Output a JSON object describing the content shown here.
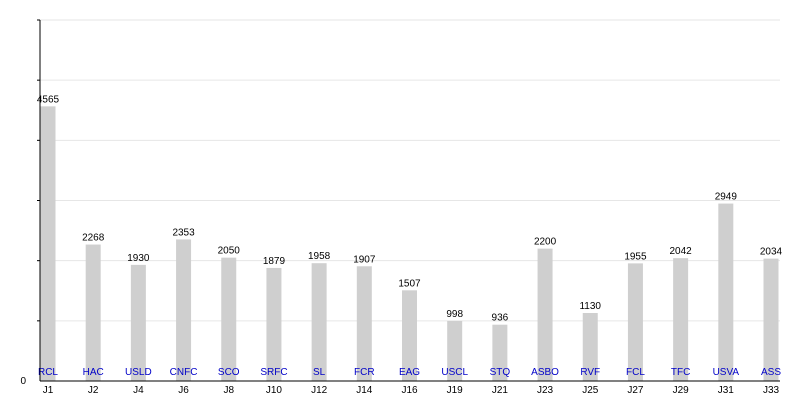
{
  "chart_data": {
    "type": "bar",
    "title": "",
    "xlabel": "",
    "ylabel": "",
    "ylim": [
      0,
      6000
    ],
    "y_ticks_labeled": [
      "0"
    ],
    "grid": true,
    "categories": [
      "J1",
      "J2",
      "J4",
      "J6",
      "J8",
      "J10",
      "J12",
      "J14",
      "J16",
      "J19",
      "J21",
      "J23",
      "J25",
      "J27",
      "J29",
      "J31",
      "J33"
    ],
    "team_labels": [
      "RCL",
      "HAC",
      "USLD",
      "CNFC",
      "SCO",
      "SRFC",
      "SL",
      "FCR",
      "EAG",
      "USCL",
      "STQ",
      "ASBO",
      "RVF",
      "FCL",
      "TFC",
      "USVA",
      "ASS"
    ],
    "values": [
      4565,
      2268,
      1930,
      2353,
      2050,
      1879,
      1958,
      1907,
      1507,
      998,
      936,
      2200,
      1130,
      1955,
      2042,
      2949,
      2034
    ],
    "value_labels": [
      "4565",
      "2268",
      "1930",
      "2353",
      "2050",
      "1879",
      "1958",
      "1907",
      "1507",
      "998",
      "936",
      "2200",
      "1130",
      "1955",
      "2042",
      "2949",
      "2034"
    ],
    "colors": {
      "bar": "#cfcfcf",
      "team_label": "#0000c8",
      "grid": "#e6e6e6",
      "axis": "#000000"
    }
  }
}
